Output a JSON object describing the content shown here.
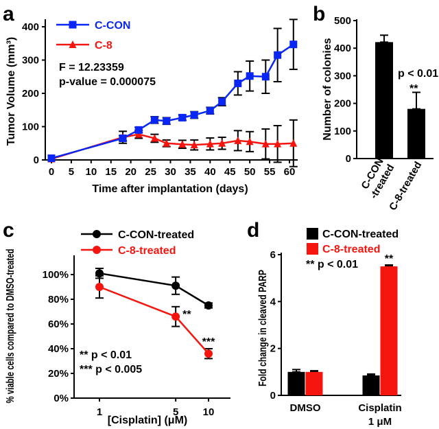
{
  "panels": {
    "a": "a",
    "b": "b",
    "c": "c",
    "d": "d"
  },
  "colors": {
    "blue": "#0a26f5",
    "red": "#f5150f",
    "black": "#000000"
  },
  "chart_data": [
    {
      "panel": "a",
      "type": "line",
      "xlabel": "Time after implantation (days)",
      "ylabel": "Tumor Volume (mm³)",
      "xlim": [
        0,
        62
      ],
      "ylim": [
        0,
        420
      ],
      "xticks": [
        "0",
        "5",
        "10",
        "15",
        "20",
        "25",
        "30",
        "35",
        "40",
        "45",
        "50",
        "55",
        "60"
      ],
      "yticks": [
        "0",
        "100",
        "200",
        "300",
        "400"
      ],
      "legend_position": "top-left",
      "annotations": [
        "F = 12.23359",
        "p-value = 0.000075"
      ],
      "series": [
        {
          "name": "C-CON",
          "color": "#0a26f5",
          "marker": "square",
          "x": [
            0,
            18,
            22,
            26,
            29,
            33,
            36,
            40,
            43,
            47,
            50,
            54,
            57,
            61
          ],
          "y": [
            5,
            65,
            90,
            120,
            117,
            127,
            135,
            148,
            175,
            230,
            252,
            250,
            315,
            347
          ],
          "error": [
            0,
            8,
            8,
            10,
            10,
            8,
            10,
            10,
            12,
            35,
            45,
            50,
            80,
            75
          ]
        },
        {
          "name": "C-8",
          "color": "#f5150f",
          "marker": "triangle",
          "x": [
            0,
            18,
            22,
            26,
            29,
            33,
            36,
            40,
            43,
            47,
            50,
            54,
            57,
            61
          ],
          "y": [
            3,
            68,
            77,
            65,
            50,
            47,
            45,
            48,
            50,
            58,
            55,
            48,
            48,
            50
          ],
          "error": [
            0,
            18,
            12,
            12,
            10,
            12,
            15,
            18,
            18,
            30,
            30,
            45,
            55,
            70
          ]
        }
      ]
    },
    {
      "panel": "b",
      "type": "bar",
      "ylabel": "Number of colonies",
      "ylim": [
        0,
        500
      ],
      "yticks": [
        "0",
        "100",
        "200",
        "300",
        "400",
        "500"
      ],
      "categories": [
        "C-CON\n-treated",
        "C-8-treated"
      ],
      "values": [
        422,
        180
      ],
      "error": [
        25,
        60
      ],
      "color": "#000000",
      "annotations": [
        "p < 0.01",
        "**"
      ]
    },
    {
      "panel": "c",
      "type": "line",
      "xlabel": "[Cisplatin] (μM)",
      "ylabel": "% viable cells compared to DMSO-treated",
      "xscale": "log",
      "xticks": [
        "1",
        "5",
        "10"
      ],
      "yticks": [
        "0%",
        "20%",
        "40%",
        "60%",
        "80%",
        "100%"
      ],
      "ylim": [
        0,
        100
      ],
      "legend_position": "top",
      "annotations": [
        "**",
        "***",
        "** p < 0.01",
        "*** p < 0.005"
      ],
      "series": [
        {
          "name": "C-CON-treated",
          "color": "#000000",
          "x": [
            1,
            5,
            10
          ],
          "y": [
            101,
            91,
            75
          ],
          "error": [
            4,
            7,
            2
          ]
        },
        {
          "name": "C-8-treated",
          "color": "#f5150f",
          "x": [
            1,
            5,
            10
          ],
          "y": [
            90,
            66,
            36
          ],
          "error": [
            9,
            8,
            4
          ]
        }
      ]
    },
    {
      "panel": "d",
      "type": "bar",
      "ylabel": "Fold change in cleaved PARP",
      "ylim": [
        0,
        6
      ],
      "yticks": [
        "0",
        "2",
        "4",
        "6"
      ],
      "categories": [
        "DMSO",
        "Cisplatin\n1 μM"
      ],
      "legend_position": "top-left",
      "annotations": [
        "** p < 0.01",
        "**"
      ],
      "series": [
        {
          "name": "C-CON-treated",
          "color": "#000000",
          "values": [
            1.0,
            0.85
          ],
          "error": [
            0.1,
            0.06
          ]
        },
        {
          "name": "C-8-treated",
          "color": "#f5150f",
          "values": [
            1.0,
            5.5
          ],
          "error": [
            0.05,
            0.06
          ]
        }
      ]
    }
  ]
}
